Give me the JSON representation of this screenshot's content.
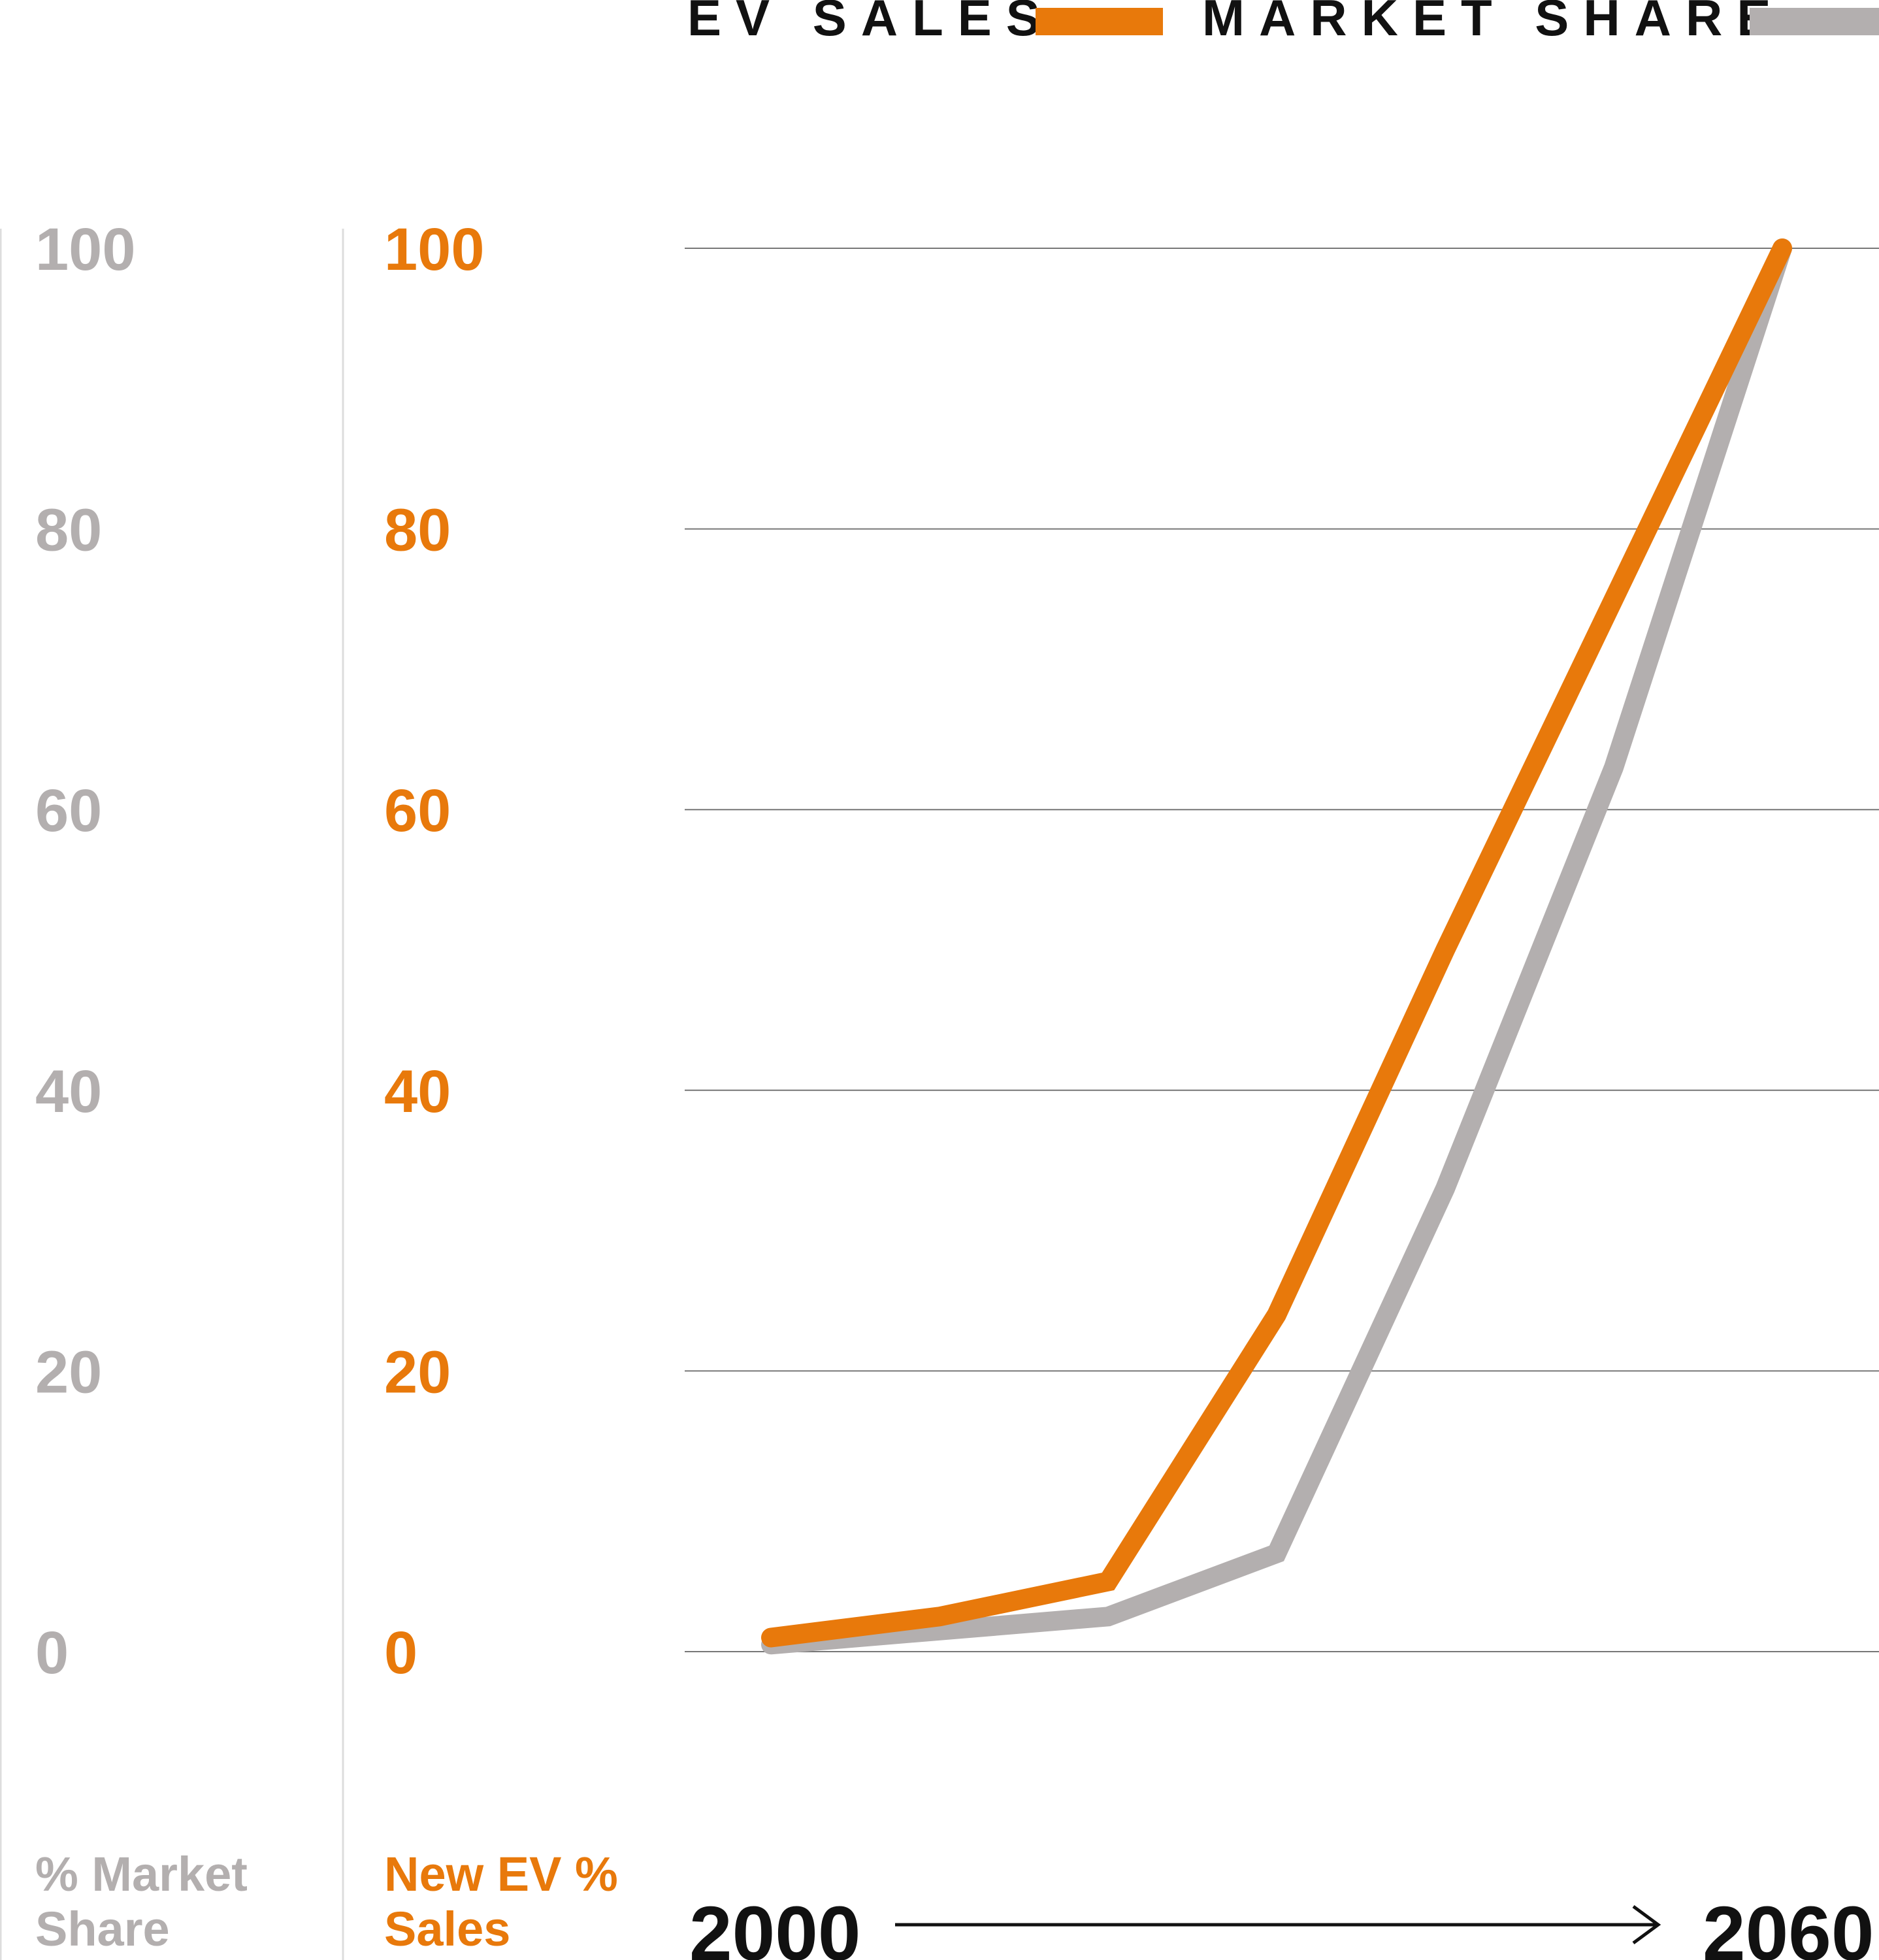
{
  "colors": {
    "ev_sales": "#e8790b",
    "market_share": "#b3afaf",
    "grid": "#777777",
    "axis_rule": "#dddddd",
    "text_dark": "#111111"
  },
  "legend": {
    "ev_sales_label": "EV SALES",
    "market_share_label": "MARKET SHARE"
  },
  "axes": {
    "left_title_line1": "% Market",
    "left_title_line2": "Share",
    "right_title_line1": "New EV %",
    "right_title_line2": "Sales",
    "x_start_label": "2000",
    "x_end_label": "2060"
  },
  "chart_data": {
    "type": "line",
    "x": [
      2000,
      2010,
      2020,
      2030,
      2040,
      2050,
      2060
    ],
    "series": [
      {
        "name": "EV SALES",
        "values": [
          1,
          2.5,
          5,
          24,
          50,
          75,
          100
        ]
      },
      {
        "name": "MARKET SHARE",
        "values": [
          0.5,
          1.5,
          2.5,
          7,
          33,
          63,
          100
        ]
      }
    ],
    "xlim": [
      2000,
      2060
    ],
    "ylim": [
      0,
      100
    ],
    "yticks": [
      0,
      20,
      40,
      60,
      80,
      100
    ],
    "yticks_left": [
      "0",
      "20",
      "40",
      "60",
      "80",
      "100"
    ],
    "yticks_right": [
      "0",
      "20",
      "40",
      "60",
      "80",
      "100"
    ],
    "grid": true,
    "legend_position": "top-right"
  }
}
